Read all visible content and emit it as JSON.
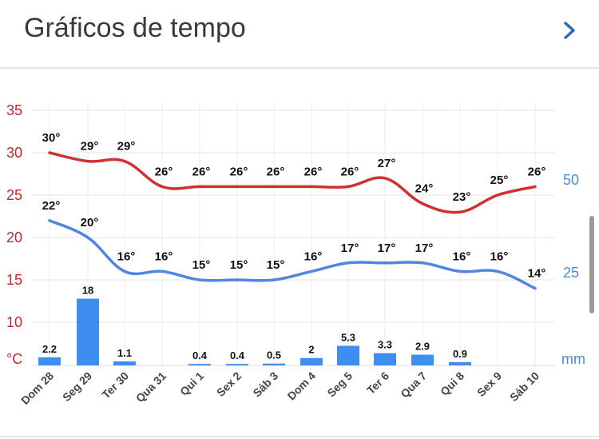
{
  "header": {
    "title": "Gráficos de tempo",
    "chevron_icon": "chevron-right-icon"
  },
  "colors": {
    "max_temp": "#d32f2f",
    "min_temp": "#4f86e0",
    "precip": "#3d8ef0",
    "left_axis": "#c62828",
    "right_axis": "#4a8fd6",
    "grid": "#e6e6e6"
  },
  "chart_data": {
    "type": "line",
    "categories": [
      "Dom 28",
      "Seg 29",
      "Ter 30",
      "Qua 31",
      "Qui 1",
      "Sex 2",
      "Sáb 3",
      "Dom 4",
      "Seg 5",
      "Ter 6",
      "Qua 7",
      "Qui 8",
      "Sex 9",
      "Sáb 10"
    ],
    "series": [
      {
        "type": "line",
        "axis": "left",
        "values": [
          30,
          29,
          29,
          26,
          26,
          26,
          26,
          26,
          26,
          27,
          24,
          23,
          25,
          26
        ],
        "labels": [
          "30°",
          "29°",
          "29°",
          "26°",
          "26°",
          "26°",
          "26°",
          "26°",
          "26°",
          "27°",
          "24°",
          "23°",
          "25°",
          "26°"
        ]
      },
      {
        "type": "line",
        "axis": "left",
        "values": [
          22,
          20,
          16,
          16,
          15,
          15,
          15,
          16,
          17,
          17,
          17,
          16,
          16,
          14
        ],
        "labels": [
          "22°",
          "20°",
          "16°",
          "16°",
          "15°",
          "15°",
          "15°",
          "16°",
          "17°",
          "17°",
          "17°",
          "16°",
          "16°",
          "14°"
        ]
      },
      {
        "type": "bar",
        "axis": "right",
        "values": [
          2.2,
          18,
          1.1,
          0,
          0.4,
          0.4,
          0.5,
          2,
          5.3,
          3.3,
          2.9,
          0.9,
          0,
          0
        ],
        "labels": [
          "2.2",
          "18",
          "1.1",
          "",
          "0.4",
          "0.4",
          "0.5",
          "2",
          "5.3",
          "3.3",
          "2.9",
          "0.9",
          "",
          ""
        ]
      }
    ],
    "left_axis": {
      "ticks": [
        "35",
        "30",
        "25",
        "20",
        "15",
        "10"
      ],
      "unit": "°C",
      "ylim": [
        6,
        35
      ]
    },
    "right_axis": {
      "ticks": [
        "50",
        "25"
      ],
      "unit": "mm",
      "ylim": [
        0,
        70
      ]
    },
    "grid": true
  }
}
